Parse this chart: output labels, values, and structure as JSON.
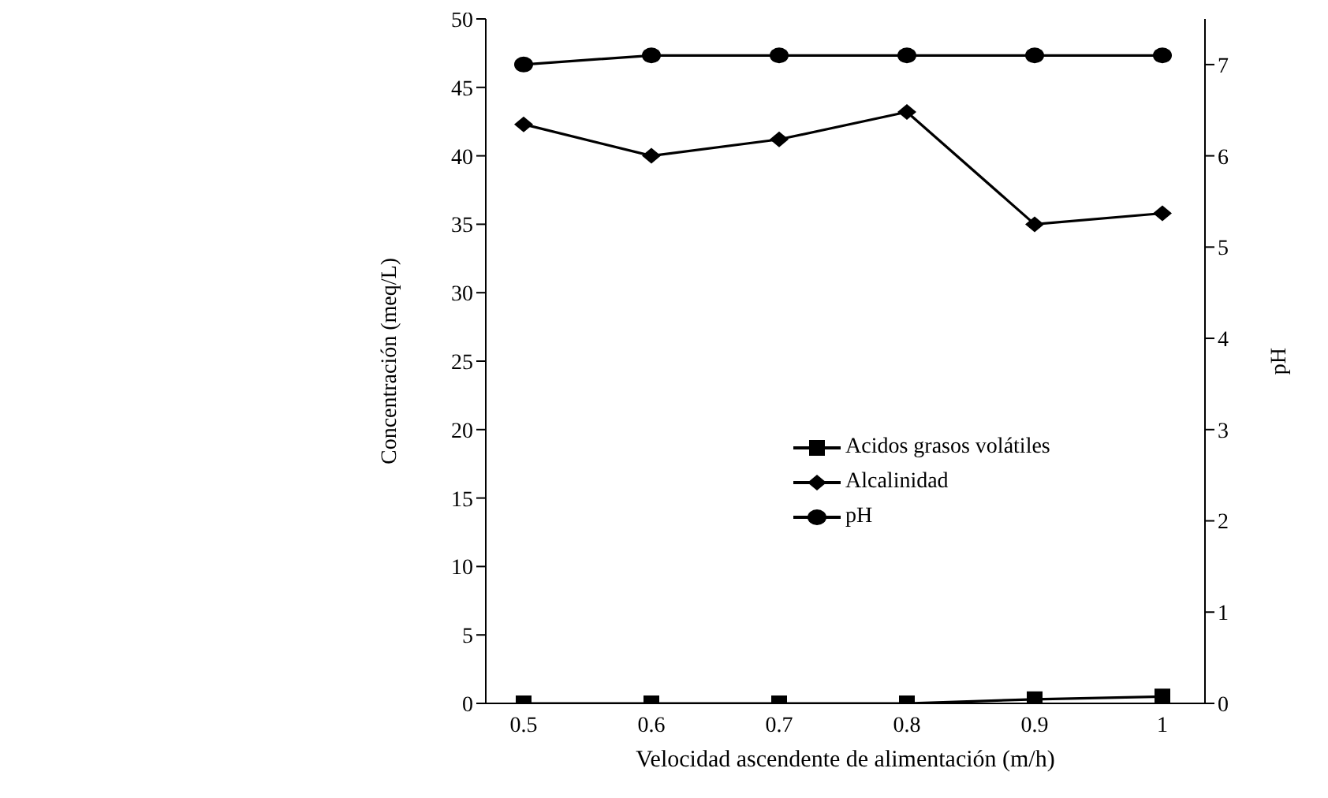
{
  "chart_data": {
    "type": "line",
    "xlabel": "Velocidad ascendente de alimentación (m/h)",
    "ylabel": "Concentración (meq/L)",
    "y2label": "pH",
    "categories": [
      "0.5",
      "0.6",
      "0.7",
      "0.8",
      "0.9",
      "1"
    ],
    "series": [
      {
        "name": "Acidos grasos volátiles",
        "color": "#000000",
        "marker": "square",
        "values": [
          0,
          0,
          0,
          0,
          0.3,
          0.5
        ]
      },
      {
        "name": "Alcalinidad",
        "color": "#000000",
        "marker": "diamond",
        "values": [
          42.3,
          40.0,
          41.2,
          43.2,
          35.0,
          35.8
        ]
      },
      {
        "name": "pH",
        "color": "#000000",
        "marker": "circle",
        "axis": "y2",
        "values": [
          7.0,
          7.1,
          7.1,
          7.1,
          7.1,
          7.1
        ]
      }
    ],
    "ylim": [
      0,
      50
    ],
    "yticks": [
      0,
      5,
      10,
      15,
      20,
      25,
      30,
      35,
      40,
      45,
      50
    ],
    "y2lim": [
      0,
      7.5
    ],
    "y2ticks": [
      0,
      1,
      2,
      3,
      4,
      5,
      6,
      7
    ],
    "grid": false,
    "legend": "center",
    "line_style": "solid"
  }
}
